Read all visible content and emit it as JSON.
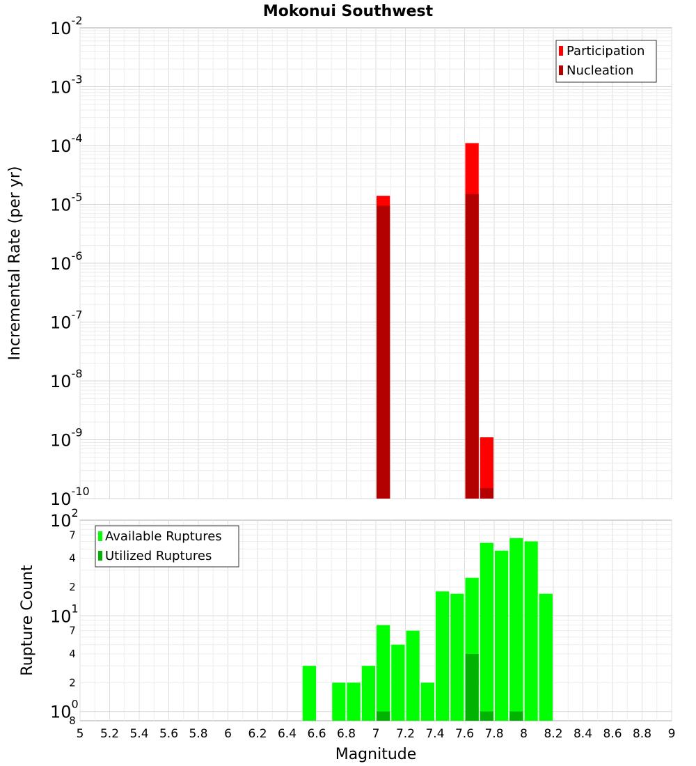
{
  "chart_data": {
    "title": "Mokonui Southwest",
    "xlabel": "Magnitude",
    "x_ticks": [
      "5",
      "5.2",
      "5.4",
      "5.6",
      "5.8",
      "6",
      "6.2",
      "6.4",
      "6.6",
      "6.8",
      "7",
      "7.2",
      "7.4",
      "7.6",
      "7.8",
      "8",
      "8.2",
      "8.4",
      "8.6",
      "8.8",
      "9"
    ],
    "xlim": [
      5,
      9
    ],
    "bin_width": 0.1,
    "panels": [
      {
        "type": "bar",
        "ylabel": "Incremental Rate (per yr)",
        "yscale": "log",
        "ylim": [
          1e-10,
          0.01
        ],
        "y_ticks": [
          {
            "base": "10",
            "exp": "-10"
          },
          {
            "base": "10",
            "exp": "-9"
          },
          {
            "base": "10",
            "exp": "-8"
          },
          {
            "base": "10",
            "exp": "-7"
          },
          {
            "base": "10",
            "exp": "-6"
          },
          {
            "base": "10",
            "exp": "-5"
          },
          {
            "base": "10",
            "exp": "-4"
          },
          {
            "base": "10",
            "exp": "-3"
          },
          {
            "base": "10",
            "exp": "-2"
          }
        ],
        "grid": true,
        "legend_position": "top-right",
        "series": [
          {
            "name": "Participation",
            "color": "#ff0000",
            "x": [
              7.05,
              7.65,
              7.75
            ],
            "values": [
              1.4e-05,
              0.00011,
              1.1e-09
            ]
          },
          {
            "name": "Nucleation",
            "color": "#b30000",
            "x": [
              7.05,
              7.65,
              7.75
            ],
            "values": [
              9.5e-06,
              1.5e-05,
              1.5e-10
            ]
          }
        ]
      },
      {
        "type": "bar",
        "ylabel": "Rupture Count",
        "yscale": "log",
        "ylim": [
          0.8,
          100
        ],
        "y_major_ticks": [
          {
            "base": "10",
            "exp": "0"
          },
          {
            "base": "10",
            "exp": "1"
          },
          {
            "base": "10",
            "exp": "2"
          }
        ],
        "y_minor_labels": [
          "8",
          "2",
          "4",
          "7",
          "2",
          "4",
          "7"
        ],
        "grid": true,
        "legend_position": "top-left",
        "series": [
          {
            "name": "Available Ruptures",
            "color": "#00ff00",
            "x": [
              6.55,
              6.75,
              6.85,
              6.95,
              7.05,
              7.15,
              7.25,
              7.35,
              7.45,
              7.55,
              7.65,
              7.75,
              7.85,
              7.95,
              8.05,
              8.15
            ],
            "values": [
              3,
              2,
              2,
              3,
              8,
              5,
              7,
              2,
              18,
              17,
              25,
              58,
              48,
              65,
              60,
              17
            ]
          },
          {
            "name": "Utilized Ruptures",
            "color": "#00b300",
            "x": [
              7.05,
              7.65,
              7.75,
              7.95
            ],
            "values": [
              1,
              4,
              1,
              1
            ]
          }
        ]
      }
    ]
  }
}
